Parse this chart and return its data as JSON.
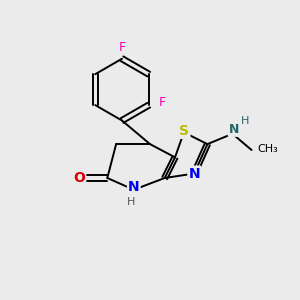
{
  "background_color": "#ebebeb",
  "bond_color": "#000000",
  "atom_colors": {
    "F": "#ee00bb",
    "S": "#bbbb00",
    "N": "#0000ee",
    "O": "#dd0000",
    "C": "#000000",
    "H": "#555555"
  }
}
